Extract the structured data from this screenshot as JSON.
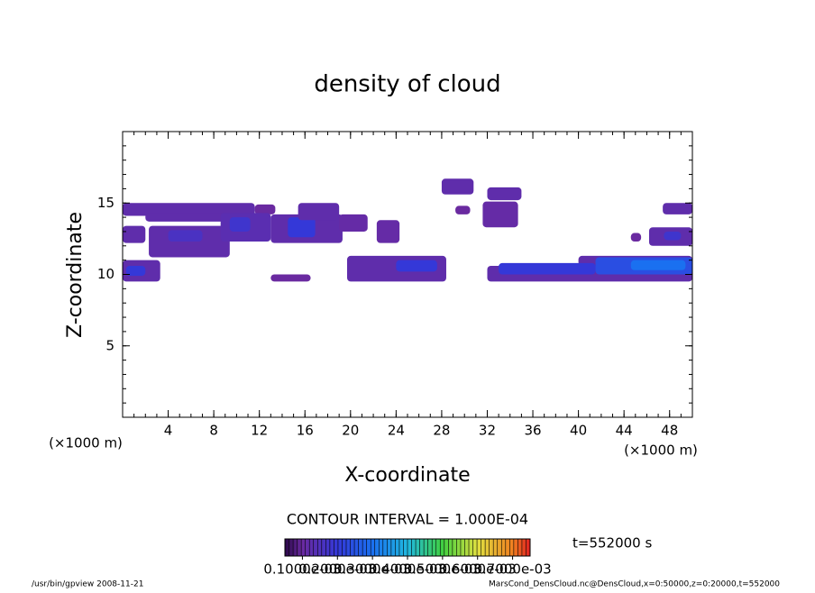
{
  "chart_data": {
    "type": "contour",
    "title": "density of cloud",
    "x_label": "X-coordinate",
    "y_label": "Z-coordinate",
    "x_unit": "(×1000 m)",
    "y_unit": "(×1000 m)",
    "contour_interval": "CONTOUR INTERVAL = 1.000E-04",
    "time_label": "t=552000 s",
    "footer_left": "/usr/bin/gpview  2008-11-21",
    "footer_right": "MarsCond_DensCloud.nc@DensCloud,x=0:50000,z=0:20000,t=552000",
    "xlim": [
      0,
      50
    ],
    "ylim": [
      0,
      20
    ],
    "xticks": [
      4,
      8,
      12,
      16,
      20,
      24,
      28,
      32,
      36,
      40,
      44,
      48
    ],
    "yticks": [
      5,
      10,
      15
    ],
    "minor_tick_step": 1,
    "colormap": [
      [
        5e-05,
        "#2a0848"
      ],
      [
        0.0001,
        "#6a2aa0"
      ],
      [
        0.0002,
        "#3438d8"
      ],
      [
        0.0003,
        "#1a70f0"
      ],
      [
        0.0004,
        "#20b8e0"
      ],
      [
        0.0005,
        "#40d040"
      ],
      [
        0.0006,
        "#e0e040"
      ],
      [
        0.0007,
        "#f08020"
      ],
      [
        0.00075,
        "#e02020"
      ]
    ],
    "colorbar_lim": [
      5e-05,
      0.00075
    ],
    "colorbar_ticks": [
      {
        "value": 0.0001,
        "label": "0.1000e-03"
      },
      {
        "value": 0.0002,
        "label": "0.2000e-03"
      },
      {
        "value": 0.0003,
        "label": "0.3000e-03"
      },
      {
        "value": 0.0004,
        "label": "0.4000e-03"
      },
      {
        "value": 0.0005,
        "label": "0.5000e-03"
      },
      {
        "value": 0.0006,
        "label": "0.6000e-03"
      },
      {
        "value": 0.0007,
        "label": "0.7000e-03"
      }
    ],
    "cells": [
      {
        "x": [
          0,
          11.6
        ],
        "z": [
          14.1,
          15
        ],
        "value": 0.00012
      },
      {
        "x": [
          11.6,
          13.4
        ],
        "z": [
          14.2,
          14.9
        ],
        "value": 0.0001
      },
      {
        "x": [
          2,
          12.5
        ],
        "z": [
          13.7,
          14.3
        ],
        "value": 0.00012
      },
      {
        "x": [
          0,
          2
        ],
        "z": [
          12.2,
          13.4
        ],
        "value": 0.00012
      },
      {
        "x": [
          2.3,
          9.4
        ],
        "z": [
          11.2,
          13.4
        ],
        "value": 0.00012
      },
      {
        "x": [
          4,
          7
        ],
        "z": [
          12.3,
          13.1
        ],
        "value": 0.00016
      },
      {
        "x": [
          8.6,
          13
        ],
        "z": [
          12.3,
          14.3
        ],
        "value": 0.00013
      },
      {
        "x": [
          9.4,
          11.2
        ],
        "z": [
          13,
          14
        ],
        "value": 0.00018
      },
      {
        "x": [
          13,
          19.3
        ],
        "z": [
          12.2,
          14.2
        ],
        "value": 0.00012
      },
      {
        "x": [
          14.5,
          16.9
        ],
        "z": [
          12.6,
          14
        ],
        "value": 0.0002
      },
      {
        "x": [
          15.4,
          19
        ],
        "z": [
          13.8,
          15
        ],
        "value": 0.00012
      },
      {
        "x": [
          19,
          21.5
        ],
        "z": [
          13,
          14.2
        ],
        "value": 0.00011
      },
      {
        "x": [
          22.3,
          24.3
        ],
        "z": [
          12.2,
          13.8
        ],
        "value": 0.00011
      },
      {
        "x": [
          0,
          3.3
        ],
        "z": [
          9.5,
          11
        ],
        "value": 0.00012
      },
      {
        "x": [
          0.3,
          2
        ],
        "z": [
          9.9,
          10.6
        ],
        "value": 0.0002
      },
      {
        "x": [
          13,
          16.5
        ],
        "z": [
          9.5,
          10
        ],
        "value": 0.0001
      },
      {
        "x": [
          19.7,
          28.4
        ],
        "z": [
          9.5,
          11.3
        ],
        "value": 0.00012
      },
      {
        "x": [
          24,
          27.6
        ],
        "z": [
          10.2,
          11
        ],
        "value": 0.0002
      },
      {
        "x": [
          28,
          30.8
        ],
        "z": [
          15.6,
          16.7
        ],
        "value": 0.00012
      },
      {
        "x": [
          29.2,
          30.5
        ],
        "z": [
          14.2,
          14.8
        ],
        "value": 0.0001
      },
      {
        "x": [
          32,
          35
        ],
        "z": [
          15.2,
          16.1
        ],
        "value": 0.00012
      },
      {
        "x": [
          31.6,
          34.7
        ],
        "z": [
          13.3,
          15.1
        ],
        "value": 0.00011
      },
      {
        "x": [
          32,
          50
        ],
        "z": [
          9.5,
          10.6
        ],
        "value": 0.00012
      },
      {
        "x": [
          40,
          50
        ],
        "z": [
          10.6,
          11.3
        ],
        "value": 0.00012
      },
      {
        "x": [
          33,
          41.5
        ],
        "z": [
          10,
          10.8
        ],
        "value": 0.0002
      },
      {
        "x": [
          41.5,
          50
        ],
        "z": [
          10,
          11.2
        ],
        "value": 0.00024
      },
      {
        "x": [
          44.6,
          49.4
        ],
        "z": [
          10.3,
          11
        ],
        "value": 0.0003
      },
      {
        "x": [
          46.2,
          50
        ],
        "z": [
          12,
          13.3
        ],
        "value": 0.00012
      },
      {
        "x": [
          47.5,
          49
        ],
        "z": [
          12.4,
          13
        ],
        "value": 0.00018
      },
      {
        "x": [
          47.4,
          50
        ],
        "z": [
          14.2,
          15
        ],
        "value": 0.00012
      },
      {
        "x": [
          44.6,
          45.5
        ],
        "z": [
          12.3,
          12.9
        ],
        "value": 0.0001
      }
    ]
  }
}
